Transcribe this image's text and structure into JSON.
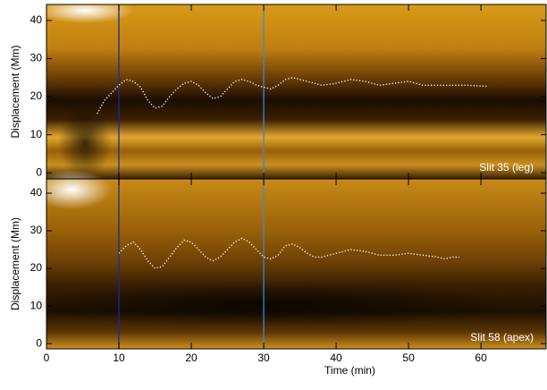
{
  "chart_data": [
    {
      "type": "line",
      "annotation": "Slit 35 (leg)",
      "y_label": "Displacement (Mm)",
      "xlim": [
        0,
        69
      ],
      "ylim": [
        -1.6,
        44.2
      ],
      "xticks": [
        0,
        10,
        20,
        30,
        40,
        50,
        60
      ],
      "yticks": [
        0,
        10,
        20,
        30,
        40
      ],
      "xtick_labels": false,
      "vlines": [
        {
          "x": 10,
          "color": "#1a2a9a"
        },
        {
          "x": 30,
          "color": "#3a8ad0"
        }
      ],
      "series": [
        {
          "color": "#ffffff",
          "x": [
            7,
            8,
            9,
            10,
            11,
            12,
            13,
            14,
            15,
            16,
            17,
            18,
            19,
            20,
            21,
            22,
            23,
            24,
            25,
            26,
            27,
            28,
            29,
            30,
            31,
            32,
            33,
            34,
            35,
            36,
            37,
            38,
            40,
            42,
            44,
            46,
            48,
            50,
            52,
            54,
            56,
            58,
            60,
            61
          ],
          "values": [
            15.5,
            19,
            21,
            23,
            24.5,
            24,
            22.5,
            19,
            17,
            17.5,
            20,
            22,
            23.5,
            24,
            23,
            21,
            19.5,
            20,
            22,
            24,
            24.5,
            24,
            23,
            22.5,
            22,
            23,
            24.5,
            25,
            24.5,
            24,
            23.5,
            23,
            23.5,
            24.5,
            24,
            23,
            23.5,
            24,
            23,
            23,
            23,
            23,
            22.8,
            22.7
          ]
        }
      ]
    },
    {
      "type": "line",
      "annotation": "Slit 58 (apex)",
      "y_label": "Displacement (Mm)",
      "x_label": "Time (min)",
      "xlim": [
        0,
        69
      ],
      "ylim": [
        -1.4,
        43.8
      ],
      "xticks": [
        0,
        10,
        20,
        30,
        40,
        50,
        60
      ],
      "yticks": [
        0,
        10,
        20,
        30,
        40
      ],
      "xtick_labels": true,
      "vlines": [
        {
          "x": 10,
          "color": "#1a2a9a"
        },
        {
          "x": 30,
          "color": "#3a8ad0"
        }
      ],
      "series": [
        {
          "color": "#ffffff",
          "x": [
            10,
            11,
            12,
            13,
            14,
            15,
            16,
            17,
            18,
            19,
            20,
            21,
            22,
            23,
            24,
            25,
            26,
            27,
            28,
            29,
            30,
            31,
            32,
            33,
            34,
            35,
            36,
            37,
            38,
            40,
            42,
            44,
            46,
            48,
            50,
            52,
            54,
            55,
            56,
            57
          ],
          "values": [
            24,
            26,
            27,
            25,
            22,
            20,
            20.5,
            23,
            25.5,
            27.5,
            27,
            25,
            23,
            22,
            23,
            25,
            27,
            28,
            27,
            25,
            23,
            22.5,
            23.5,
            26,
            26.5,
            25.5,
            24,
            23,
            23,
            24,
            25,
            24.5,
            23.5,
            23.5,
            24,
            23.5,
            23,
            22.5,
            23,
            23
          ]
        }
      ]
    }
  ]
}
